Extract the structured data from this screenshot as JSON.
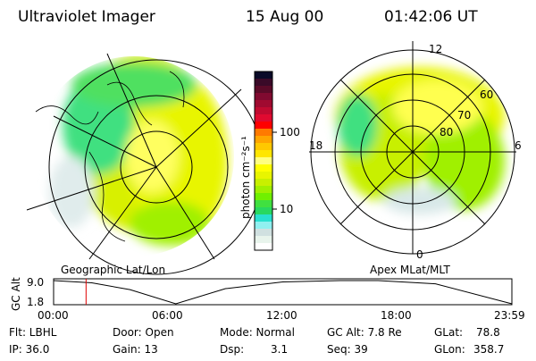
{
  "header": {
    "title": "Ultraviolet Imager",
    "date": "15 Aug 00",
    "time": "01:42:06 UT"
  },
  "left_map": {
    "label": "Geographic Lat/Lon"
  },
  "right_map": {
    "label": "Apex MLat/MLT",
    "mlt_labels": [
      "12",
      "18",
      "6",
      "0"
    ],
    "lat_labels": [
      "60",
      "70",
      "80"
    ]
  },
  "colorbar": {
    "unit_label": "photon cm⁻²s⁻¹",
    "tick_labels": [
      "100",
      "10"
    ],
    "colors": [
      "#0a0a28",
      "#3a0a28",
      "#5a0a28",
      "#800a30",
      "#a00a30",
      "#c00a30",
      "#e00a30",
      "#ff0000",
      "#ff7a00",
      "#ffa500",
      "#ffc800",
      "#ffe600",
      "#ffff80",
      "#ffff00",
      "#e8f500",
      "#c8f000",
      "#a0f000",
      "#70f000",
      "#40e040",
      "#28d860",
      "#28e0d0",
      "#90f0f0",
      "#d0e0e0",
      "#e8f4ec",
      "#ffffff"
    ]
  },
  "chart_data": {
    "type": "line",
    "ylabel": "GC Alt",
    "ytick_labels": [
      "9.0",
      "1.8"
    ],
    "ylim": [
      1.8,
      9.0
    ],
    "xtick_labels": [
      "00:00",
      "06:00",
      "12:00",
      "18:00",
      "23:59"
    ],
    "xlim_hours": [
      0,
      24
    ],
    "series": [
      {
        "name": "GC Alt",
        "x": [
          0,
          2,
          4,
          6.4,
          9,
          12,
          15,
          17,
          20,
          24
        ],
        "y": [
          9.0,
          8.3,
          6.2,
          1.8,
          6.5,
          8.6,
          9.0,
          9.0,
          8.0,
          1.8
        ]
      }
    ],
    "current_time_hours": 1.7
  },
  "info": {
    "filter": "Flt: LBHL",
    "ip": "IP: 36.0",
    "door": "Door: Open",
    "gain": "Gain: 13",
    "mode": "Mode: Normal",
    "dsp_label": "Dsp:",
    "dsp_value": "3.1",
    "gc_alt": "GC Alt: 7.8 Re",
    "seq": "Seq: 39",
    "glat_label": "GLat:",
    "glat_value": "78.8",
    "glon_label": "GLon:",
    "glon_value": "358.7"
  }
}
